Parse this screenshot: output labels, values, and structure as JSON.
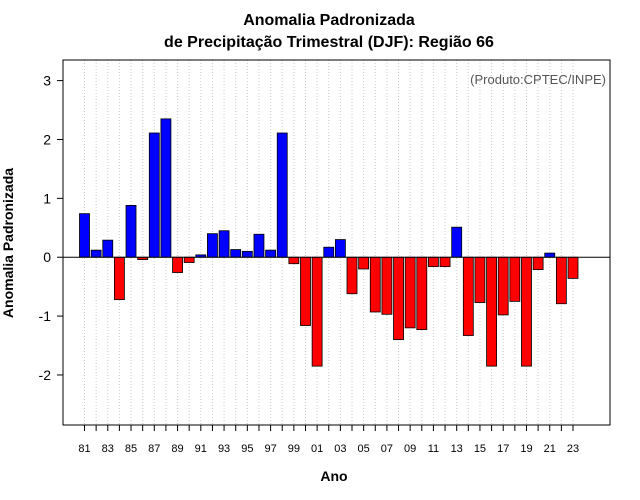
{
  "chart_data": {
    "type": "bar",
    "title": "Anomalia Padronizada",
    "subtitle": "de Precipitação Trimestral (DJF): Região 66",
    "xlabel": "Ano",
    "ylabel": "Anomalia Padronizada",
    "credit": "(Produto:CPTEC/INPE)",
    "ylim": [
      -2.85,
      3.35
    ],
    "yticks": [
      -2,
      -1,
      0,
      1,
      2,
      3
    ],
    "ytick_labels": [
      "-2",
      "-1",
      "0",
      "1",
      "2",
      "3"
    ],
    "categories": [
      "81",
      "82",
      "83",
      "84",
      "85",
      "86",
      "87",
      "88",
      "89",
      "90",
      "91",
      "92",
      "93",
      "94",
      "95",
      "96",
      "97",
      "98",
      "99",
      "00",
      "01",
      "02",
      "03",
      "04",
      "05",
      "06",
      "07",
      "08",
      "09",
      "10",
      "11",
      "12",
      "13",
      "14",
      "15",
      "16",
      "17",
      "18",
      "19",
      "20",
      "21",
      "22",
      "23"
    ],
    "xtick_labels": [
      "81",
      "83",
      "85",
      "87",
      "89",
      "91",
      "93",
      "95",
      "97",
      "99",
      "01",
      "03",
      "05",
      "07",
      "09",
      "11",
      "13",
      "15",
      "17",
      "19",
      "21",
      "23"
    ],
    "values": [
      0.74,
      0.12,
      0.29,
      -0.72,
      0.88,
      -0.04,
      2.11,
      2.35,
      -0.26,
      -0.09,
      0.04,
      0.4,
      0.45,
      0.13,
      0.1,
      0.39,
      0.12,
      2.11,
      -0.11,
      -1.16,
      -1.85,
      0.17,
      0.3,
      -0.62,
      -0.2,
      -0.93,
      -0.97,
      -1.4,
      -1.2,
      -1.23,
      -0.16,
      -0.16,
      0.51,
      -1.33,
      -0.77,
      -1.85,
      -0.98,
      -0.75,
      -1.85,
      -0.21,
      0.07,
      -0.79,
      -0.36
    ],
    "colors": {
      "positive": "#0000ff",
      "negative": "#ff0000",
      "gridline": "#cccccc",
      "zero_line": "#000000"
    }
  }
}
